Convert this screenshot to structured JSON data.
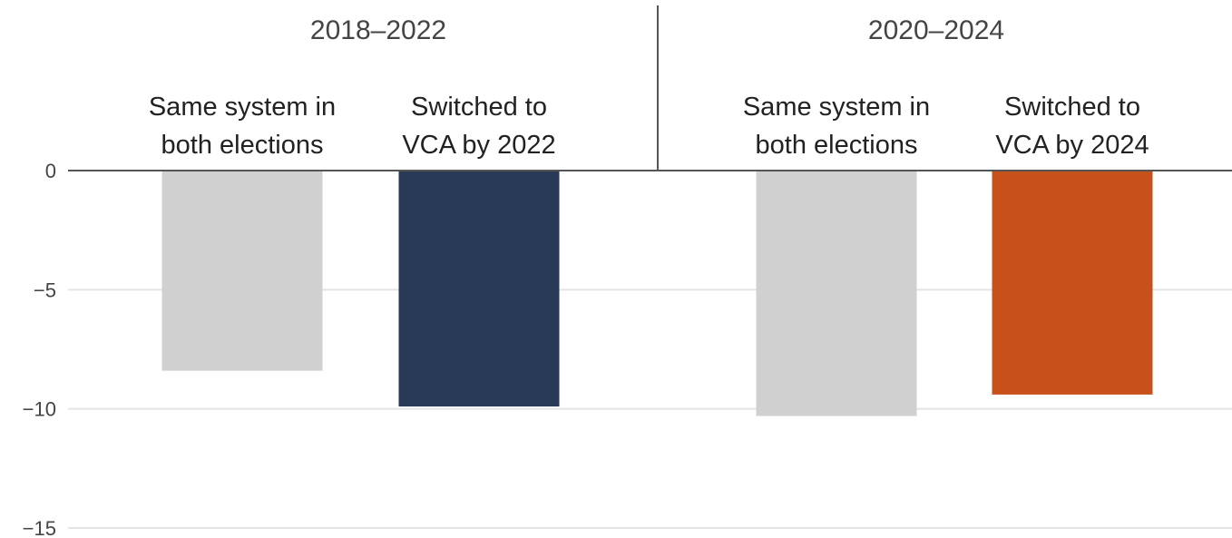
{
  "chart_data": {
    "type": "bar",
    "ylim": [
      -15,
      0
    ],
    "yticks": [
      0,
      -5,
      -10,
      -15
    ],
    "ytick_labels": [
      "0",
      "−5",
      "−10",
      "−15"
    ],
    "grid": true,
    "panels": [
      {
        "title": "2018–2022",
        "categories": [
          "Same system in both elections",
          "Switched to VCA by 2022"
        ],
        "category_lines": [
          [
            "Same system in",
            "both elections"
          ],
          [
            "Switched to",
            "VCA by 2022"
          ]
        ],
        "values": [
          -8.4,
          -9.9
        ],
        "colors": [
          "#d0d0d0",
          "#283a55"
        ]
      },
      {
        "title": "2020–2024",
        "categories": [
          "Same system in both elections",
          "Switched to VCA by 2024"
        ],
        "category_lines": [
          [
            "Same system in",
            "both elections"
          ],
          [
            "Switched to",
            "VCA by 2024"
          ]
        ],
        "values": [
          -10.3,
          -9.4
        ],
        "colors": [
          "#d0d0d0",
          "#c8511b"
        ]
      }
    ]
  }
}
